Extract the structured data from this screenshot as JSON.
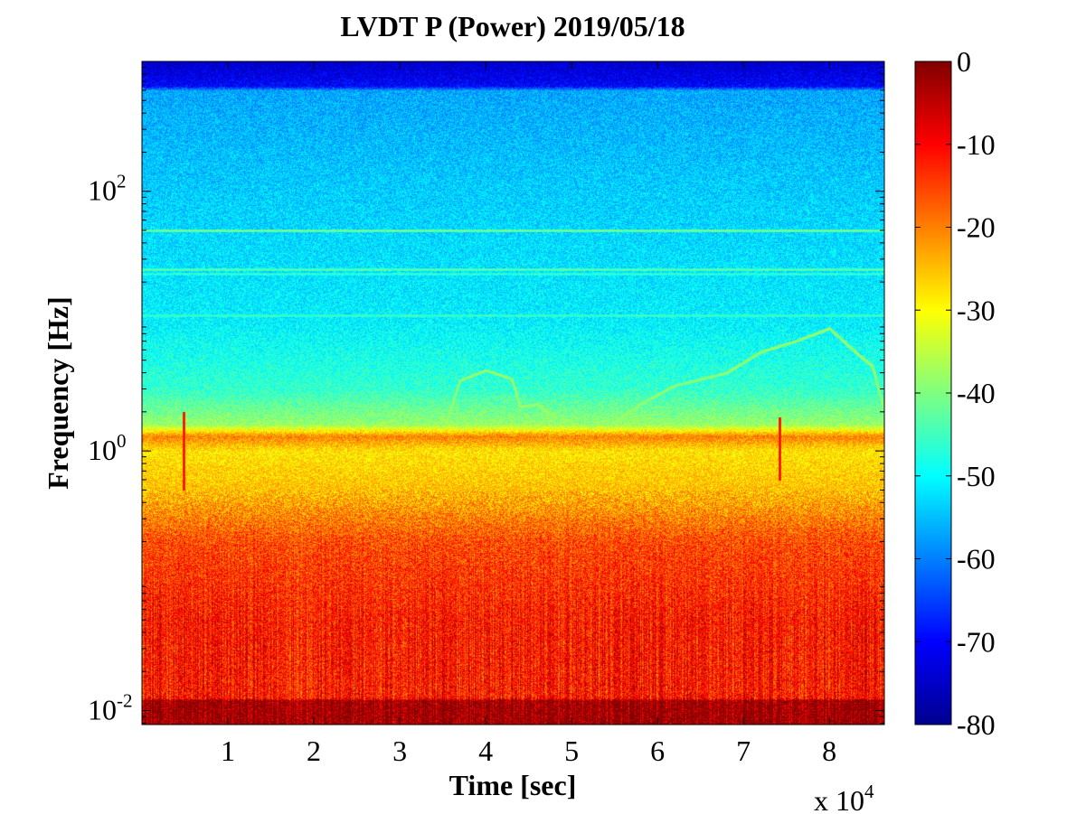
{
  "chart_data": {
    "type": "heatmap",
    "title": "LVDT P (Power) 2019/05/18",
    "xlabel": "Time [sec]",
    "ylabel": "Frequency [Hz]",
    "x_multiplier_label": "x 10",
    "x_multiplier_exponent": "4",
    "x_ticks": [
      {
        "value": 1,
        "label": "1"
      },
      {
        "value": 2,
        "label": "2"
      },
      {
        "value": 3,
        "label": "3"
      },
      {
        "value": 4,
        "label": "4"
      },
      {
        "value": 5,
        "label": "5"
      },
      {
        "value": 6,
        "label": "6"
      },
      {
        "value": 7,
        "label": "7"
      },
      {
        "value": 8,
        "label": "8"
      }
    ],
    "xlim": [
      0,
      8.64
    ],
    "y_scale": "log",
    "y_ticks": [
      {
        "value": 0.01,
        "base": "10",
        "exponent": "-2"
      },
      {
        "value": 1,
        "base": "10",
        "exponent": "0"
      },
      {
        "value": 100,
        "base": "10",
        "exponent": "2"
      }
    ],
    "ylim": [
      0.0078,
      1000
    ],
    "colorbar": {
      "colormap": "jet",
      "ticks": [
        "0",
        "-10",
        "-20",
        "-30",
        "-40",
        "-50",
        "-60",
        "-70",
        "-80"
      ],
      "range": [
        -80,
        0
      ]
    },
    "grid": false,
    "legend": "none",
    "power_profile": [
      {
        "f": 0.0078,
        "p": -2
      },
      {
        "f": 0.012,
        "p": -2
      },
      {
        "f": 0.0125,
        "p": -12
      },
      {
        "f": 0.05,
        "p": -12
      },
      {
        "f": 0.2,
        "p": -16
      },
      {
        "f": 0.5,
        "p": -25
      },
      {
        "f": 1.0,
        "p": -28
      },
      {
        "f": 1.3,
        "p": -20
      },
      {
        "f": 1.6,
        "p": -38
      },
      {
        "f": 3,
        "p": -46
      },
      {
        "f": 10,
        "p": -51
      },
      {
        "f": 100,
        "p": -54
      },
      {
        "f": 600,
        "p": -57
      },
      {
        "f": 650,
        "p": -70
      },
      {
        "f": 1000,
        "p": -74
      }
    ],
    "spectral_lines": [
      {
        "f": 50,
        "p": -40
      },
      {
        "f": 25,
        "p": -42
      },
      {
        "f": 23,
        "p": -45
      },
      {
        "f": 11,
        "p": -44
      }
    ],
    "tones": [
      {
        "points": [
          [
            3.5,
            1.4
          ],
          [
            3.7,
            3.5
          ],
          [
            4.0,
            4.2
          ],
          [
            4.3,
            3.6
          ],
          [
            4.4,
            2.2
          ],
          [
            4.6,
            2.3
          ],
          [
            4.8,
            1.8
          ]
        ],
        "p": -38
      },
      {
        "points": [
          [
            5.4,
            1.5
          ],
          [
            5.8,
            2.3
          ],
          [
            6.2,
            3.2
          ],
          [
            6.8,
            4.0
          ],
          [
            7.2,
            5.8
          ],
          [
            7.6,
            7.0
          ],
          [
            8.0,
            8.8
          ],
          [
            8.3,
            5.8
          ],
          [
            8.5,
            4.5
          ],
          [
            8.64,
            2.0
          ]
        ],
        "p": -38
      }
    ],
    "transients": [
      {
        "t": 0.48,
        "f_low": 0.5,
        "f_high": 2.0,
        "p": -8
      },
      {
        "t": 7.42,
        "f_low": 0.6,
        "f_high": 1.8,
        "p": -8
      }
    ]
  }
}
